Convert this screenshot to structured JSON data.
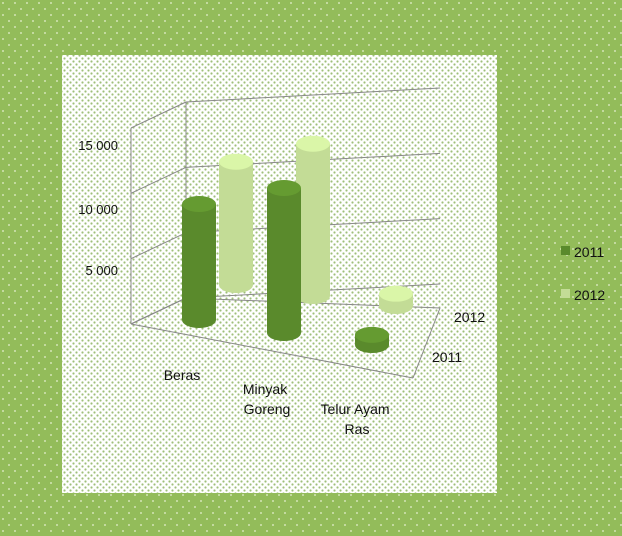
{
  "chart_data": {
    "type": "bar",
    "style": "3d-cylinder",
    "categories": [
      "Beras",
      "Minyak Goreng",
      "Telur Ayam Ras"
    ],
    "series": [
      {
        "name": "2011",
        "values": [
          8000,
          10000,
          700
        ]
      },
      {
        "name": "2012",
        "values": [
          8500,
          10500,
          850
        ]
      }
    ],
    "depth_labels": [
      "2012",
      "2011"
    ],
    "y_ticks": [
      "5 000",
      "10 000",
      "15 000"
    ],
    "ylim": [
      0,
      15000
    ],
    "grid": true,
    "legend_position": "right",
    "colors": {
      "2011": "#5a8a2c",
      "2012": "#c3dc96",
      "frame": "#93bc5a",
      "plot_bg": "#ffffff"
    }
  }
}
